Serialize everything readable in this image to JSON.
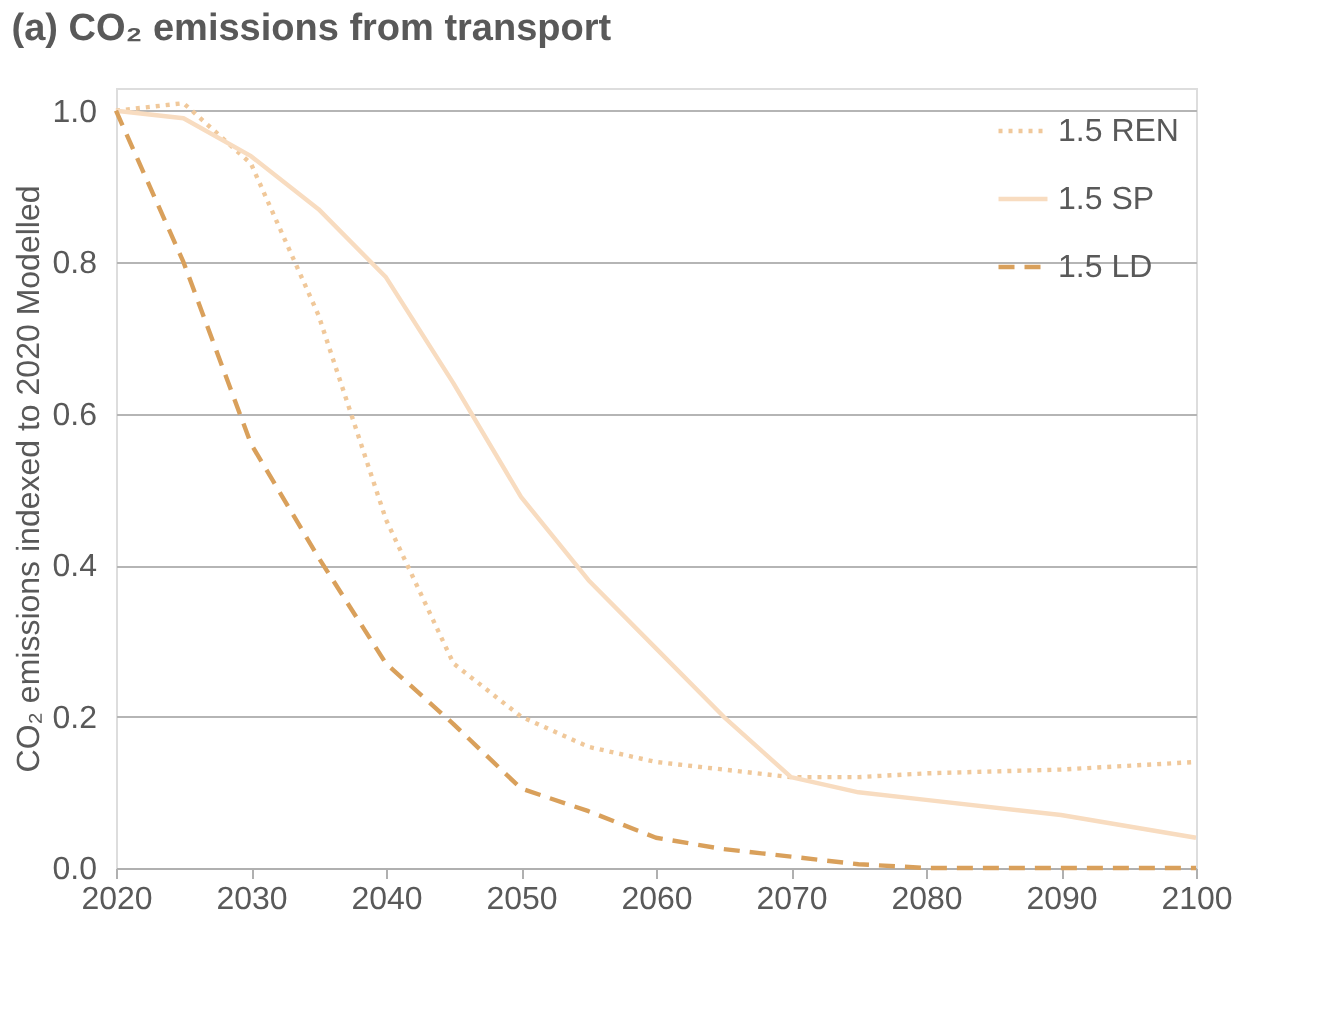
{
  "chart_data": {
    "type": "line",
    "title": "(a) CO₂ emissions from transport",
    "ylabel": "CO₂ emissions indexed to 2020 Modelled",
    "x": [
      2020,
      2025,
      2030,
      2035,
      2040,
      2045,
      2050,
      2055,
      2060,
      2065,
      2070,
      2075,
      2080,
      2090,
      2100
    ],
    "series": [
      {
        "name": "1.5 REN",
        "color": "#f0c89a",
        "line_style": "dotted",
        "values": [
          1.0,
          1.01,
          0.93,
          0.73,
          0.46,
          0.27,
          0.2,
          0.16,
          0.14,
          0.13,
          0.12,
          0.12,
          0.125,
          0.13,
          0.14
        ]
      },
      {
        "name": "1.5 SP",
        "color": "#f8dcc0",
        "line_style": "solid",
        "values": [
          1.0,
          0.99,
          0.94,
          0.87,
          0.78,
          0.64,
          0.49,
          0.38,
          0.29,
          0.2,
          0.12,
          0.1,
          0.09,
          0.07,
          0.04
        ]
      },
      {
        "name": "1.5 LD",
        "color": "#d9a05b",
        "line_style": "dashed",
        "values": [
          1.0,
          0.8,
          0.56,
          0.41,
          0.27,
          0.19,
          0.105,
          0.075,
          0.04,
          0.025,
          0.015,
          0.005,
          0.0,
          0.0,
          0.0
        ]
      }
    ],
    "xlim": [
      2020,
      2100
    ],
    "xticks": [
      2020,
      2030,
      2040,
      2050,
      2060,
      2070,
      2080,
      2090,
      2100
    ],
    "ylim": [
      0,
      1.03
    ],
    "yticks": [
      {
        "value": 0,
        "label": "0.0"
      },
      {
        "value": 0.2,
        "label": "0.2"
      },
      {
        "value": 0.4,
        "label": "0.4"
      },
      {
        "value": 0.6,
        "label": "0.6"
      },
      {
        "value": 0.8,
        "label": "0.8"
      },
      {
        "value": 1,
        "label": "1.0"
      }
    ],
    "grid": "y",
    "legend": "top right",
    "marker": "none"
  }
}
